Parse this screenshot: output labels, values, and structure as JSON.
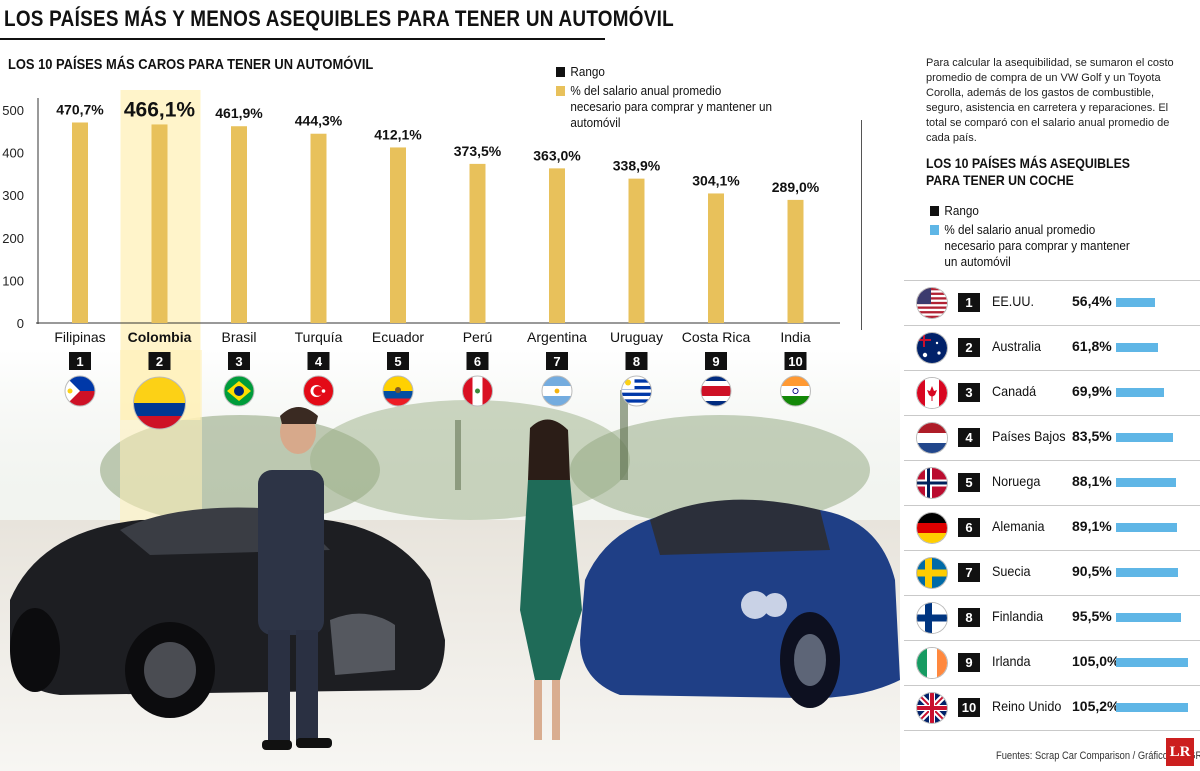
{
  "header": {
    "title": "LOS PAÍSES MÁS Y MENOS ASEQUIBLES PARA TENER UN AUTOMÓVIL",
    "left_subtitle": "LOS 10 PAÍSES MÁS CAROS PARA TENER UN AUTOMÓVIL"
  },
  "colors": {
    "bar_gold": "#e8c15b",
    "bar_blue": "#5fb6e6",
    "rank_box": "#111111",
    "highlight": "#fff0b8"
  },
  "left_legend": {
    "rank": "Rango",
    "pct": "% del salario anual promedio necesario para comprar y mantener un automóvil"
  },
  "right_legend": {
    "rank": "Rango",
    "pct": "% del salario anual promedio necesario para comprar y mantener un automóvil"
  },
  "method_note": "Para calcular la asequibilidad, se sumaron el costo promedio de compra de un VW Golf y un Toyota Corolla, además de los gastos de combustible, seguro, asistencia en carretera y reparaciones. El total se comparó con el salario anual promedio de cada país.",
  "right_subtitle": "LOS 10 PAÍSES MÁS ASEQUIBLES PARA TENER UN COCHE",
  "chart_data": [
    {
      "type": "bar",
      "title": "LOS 10 PAÍSES MÁS CAROS PARA TENER UN AUTOMÓVIL",
      "categories": [
        "Filipinas",
        "Colombia",
        "Brasil",
        "Turquía",
        "Ecuador",
        "Perú",
        "Argentina",
        "Uruguay",
        "Costa Rica",
        "India"
      ],
      "ranks": [
        "1",
        "2",
        "3",
        "4",
        "5",
        "6",
        "7",
        "8",
        "9",
        "10"
      ],
      "values": [
        470.7,
        466.1,
        461.9,
        444.3,
        412.1,
        373.5,
        363.0,
        338.9,
        304.1,
        289.0
      ],
      "labels": [
        "470,7%",
        "466,1%",
        "461,9%",
        "444,3%",
        "412,1%",
        "373,5%",
        "363,0%",
        "338,9%",
        "304,1%",
        "289,0%"
      ],
      "highlight": "Colombia",
      "yticks": [
        "0",
        "100",
        "200",
        "300",
        "400",
        "500"
      ],
      "ylim": [
        0,
        500
      ],
      "xlabel": "",
      "ylabel": "",
      "grid": false,
      "legend_position": "top-right"
    },
    {
      "type": "bar",
      "orientation": "horizontal",
      "title": "LOS 10 PAÍSES MÁS ASEQUIBLES PARA TENER UN COCHE",
      "categories": [
        "EE.UU.",
        "Australia",
        "Canadá",
        "Países Bajos",
        "Noruega",
        "Alemania",
        "Suecia",
        "Finlandia",
        "Irlanda",
        "Reino Unido"
      ],
      "ranks": [
        "1",
        "2",
        "3",
        "4",
        "5",
        "6",
        "7",
        "8",
        "9",
        "10"
      ],
      "values": [
        56.4,
        61.8,
        69.9,
        83.5,
        88.1,
        89.1,
        90.5,
        95.5,
        105.0,
        105.2
      ],
      "labels": [
        "56,4%",
        "61,8%",
        "69,9%",
        "83,5%",
        "88,1%",
        "89,1%",
        "90,5%",
        "95,5%",
        "105,0%",
        "105,2%"
      ],
      "grid": false
    }
  ],
  "flags": {
    "expensive": [
      "ph",
      "co",
      "br",
      "tr",
      "ec",
      "pe",
      "ar",
      "uy",
      "cr",
      "in"
    ],
    "affordable": [
      "us",
      "au",
      "ca",
      "nl",
      "no",
      "de",
      "se",
      "fi",
      "ie",
      "gb"
    ]
  },
  "footer": {
    "source": "Fuentes: Scrap Car Comparison / Gráfico: LR-GR",
    "logo": "LR"
  }
}
